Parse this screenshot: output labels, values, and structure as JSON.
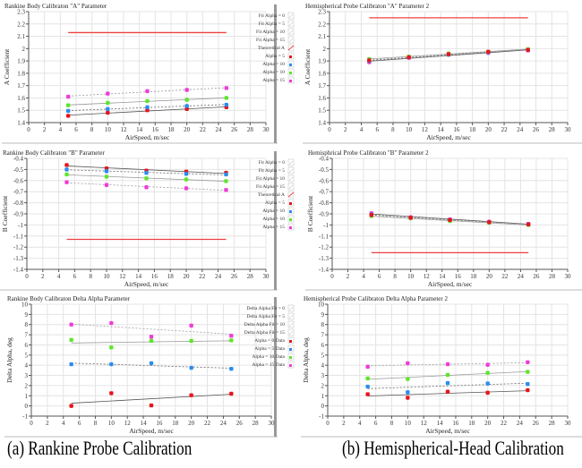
{
  "captions": {
    "a": "(a) Rankine Probe Calibration",
    "b": "(b) Hemispherical-Head Calibration"
  },
  "colors": {
    "alpha0": "#e8141c",
    "alpha5": "#2a8cf0",
    "alpha10": "#5ee62a",
    "alpha15": "#f03cd8",
    "theoretical": "#f04040",
    "fit": "#808080"
  },
  "chart_data": [
    {
      "type": "scatter",
      "title": "Rankine Body Calibraton \"A\" Parameter",
      "xlabel": "AirSpeed, m/sec",
      "ylabel": "A Coefficient",
      "xlim": [
        0,
        30
      ],
      "ylim": [
        1.4,
        2.3
      ],
      "grid": true,
      "legend_placement": "right",
      "xticks": [
        "0",
        "2",
        "4",
        "6",
        "8",
        "10",
        "12",
        "14",
        "16",
        "18",
        "20",
        "22",
        "24",
        "26",
        "28",
        "30"
      ],
      "yticks": [
        "1.4",
        "1.5",
        "1.6",
        "1.7",
        "1.8",
        "1.9",
        "2",
        "2.1",
        "2.2",
        "2.3"
      ],
      "legend": [
        "Fit Alpha = 0",
        "Fit Alpha = 5",
        "Fit Alpha = 10",
        "Fit Alpha = 15",
        "Theoretical A",
        "Alpha = 5",
        "Alpha = 10",
        "Alpha = 10",
        "Alpha = 15"
      ],
      "x": [
        5,
        10,
        15,
        20,
        25
      ],
      "series": [
        {
          "name": "Alpha = 5",
          "color": "#e8141c",
          "values": [
            1.455,
            1.48,
            1.5,
            1.51,
            1.525
          ]
        },
        {
          "name": "Alpha = 10",
          "color": "#2a8cf0",
          "values": [
            1.495,
            1.51,
            1.525,
            1.535,
            1.545
          ]
        },
        {
          "name": "Alpha = 10",
          "color": "#5ee62a",
          "values": [
            1.54,
            1.56,
            1.575,
            1.585,
            1.6
          ]
        },
        {
          "name": "Alpha = 15",
          "color": "#f03cd8",
          "values": [
            1.61,
            1.635,
            1.655,
            1.665,
            1.68
          ]
        }
      ],
      "theoretical": {
        "name": "Theoretical A",
        "value": 2.13,
        "x": [
          5,
          25
        ]
      }
    },
    {
      "type": "scatter",
      "title": "Hemispherical Probe Calibraton \"A\" Parameter 2",
      "xlabel": "AirSpeed, m/sec",
      "ylabel": "A Coefficient",
      "xlim": [
        0,
        30
      ],
      "ylim": [
        1.4,
        2.3
      ],
      "grid": true,
      "xticks": [
        "0",
        "2",
        "4",
        "6",
        "8",
        "10",
        "12",
        "14",
        "16",
        "18",
        "20",
        "22",
        "24",
        "26",
        "28",
        "30"
      ],
      "yticks": [
        "1.4",
        "1.5",
        "1.6",
        "1.7",
        "1.8",
        "1.9",
        "2",
        "2.1",
        "2.2",
        "2.3"
      ],
      "x": [
        5,
        10,
        15,
        20,
        25
      ],
      "series": [
        {
          "color": "#f03cd8",
          "values": [
            1.89,
            1.925,
            1.955,
            1.965,
            1.985
          ]
        },
        {
          "color": "#2a8cf0",
          "values": [
            1.9,
            1.93,
            1.95,
            1.97,
            1.99
          ]
        },
        {
          "color": "#5ee62a",
          "values": [
            1.915,
            1.935,
            1.96,
            1.975,
            1.995
          ]
        },
        {
          "color": "#e8141c",
          "values": [
            1.905,
            1.93,
            1.955,
            1.975,
            1.99
          ]
        }
      ],
      "theoretical": {
        "value": 2.25,
        "x": [
          5,
          25
        ]
      }
    },
    {
      "type": "scatter",
      "title": "Rankine Body Calibraton  \"B\" Parameter",
      "xlabel": "AirSpeed, m/sec",
      "ylabel": "B Coefficient",
      "xlim": [
        0,
        30
      ],
      "ylim": [
        -1.4,
        -0.4
      ],
      "grid": true,
      "legend_placement": "right",
      "xticks": [
        "0",
        "2",
        "4",
        "6",
        "8",
        "10",
        "12",
        "14",
        "16",
        "18",
        "20",
        "22",
        "24",
        "26",
        "28",
        "30"
      ],
      "yticks": [
        "-1.4",
        "-1.3",
        "-1.2",
        "-1.1",
        "-1",
        "-0.9",
        "-0.8",
        "-0.7",
        "-0.6",
        "-0.5",
        "-0.4"
      ],
      "legend": [
        "Fit Alpha = 0",
        "Fit Alpha = 5",
        "Fit Alpha = 10",
        "Fit Alpha = 15",
        "Theoretical A",
        "Alpha = 5",
        "Alpha = 10",
        "Alpha = 10",
        "Alpha = 15"
      ],
      "x": [
        5,
        10,
        15,
        20,
        25
      ],
      "series": [
        {
          "name": "Alpha = 5",
          "color": "#e8141c",
          "values": [
            -0.46,
            -0.49,
            -0.51,
            -0.52,
            -0.53
          ]
        },
        {
          "name": "Alpha = 10",
          "color": "#2a8cf0",
          "values": [
            -0.5,
            -0.515,
            -0.53,
            -0.54,
            -0.545
          ]
        },
        {
          "name": "Alpha = 10",
          "color": "#5ee62a",
          "values": [
            -0.545,
            -0.565,
            -0.58,
            -0.59,
            -0.605
          ]
        },
        {
          "name": "Alpha = 15",
          "color": "#f03cd8",
          "values": [
            -0.615,
            -0.64,
            -0.66,
            -0.67,
            -0.685
          ]
        }
      ],
      "theoretical": {
        "name": "Theoretical A",
        "value": -1.13,
        "x": [
          5,
          25
        ]
      }
    },
    {
      "type": "scatter",
      "title": "Hemisphrical Probe Calibraton  \"B\" Parameter 2",
      "xlabel": "AirSpeed, m/sec",
      "ylabel": "B Coefficient",
      "xlim": [
        0,
        30
      ],
      "ylim": [
        -1.4,
        -0.4
      ],
      "grid": true,
      "xticks": [
        "0",
        "2",
        "4",
        "6",
        "8",
        "10",
        "12",
        "14",
        "16",
        "18",
        "20",
        "22",
        "24",
        "26",
        "28",
        "30"
      ],
      "yticks": [
        "-1.4",
        "-1.3",
        "-1.2",
        "-1.1",
        "-1",
        "-0.9",
        "-0.8",
        "-0.7",
        "-0.6",
        "-0.5",
        "-0.4"
      ],
      "x": [
        5,
        10,
        15,
        20,
        25
      ],
      "series": [
        {
          "color": "#f03cd8",
          "values": [
            -0.895,
            -0.93,
            -0.95,
            -0.97,
            -0.99
          ]
        },
        {
          "color": "#2a8cf0",
          "values": [
            -0.905,
            -0.935,
            -0.955,
            -0.975,
            -0.995
          ]
        },
        {
          "color": "#5ee62a",
          "values": [
            -0.92,
            -0.94,
            -0.965,
            -0.98,
            -1.0
          ]
        },
        {
          "color": "#e8141c",
          "values": [
            -0.91,
            -0.935,
            -0.955,
            -0.975,
            -0.995
          ]
        }
      ],
      "theoretical": {
        "value": -1.25,
        "x": [
          5,
          25
        ]
      }
    },
    {
      "type": "scatter",
      "title": "Rankine Body Calibraton Delta Alpha Parameter",
      "xlabel": "AirSpeed, m/sec",
      "ylabel": "Delta Alpha, deg",
      "xlim": [
        0,
        30
      ],
      "ylim": [
        -1,
        10
      ],
      "grid": true,
      "legend_placement": "right",
      "xticks": [
        "0",
        "2",
        "4",
        "6",
        "8",
        "10",
        "12",
        "14",
        "16",
        "18",
        "20",
        "22",
        "24",
        "26",
        "28",
        "30"
      ],
      "yticks": [
        "-1",
        "0",
        "1",
        "2",
        "3",
        "4",
        "5",
        "6",
        "7",
        "8",
        "9",
        "10"
      ],
      "legend": [
        "Delta Alpha Fit = 0",
        "Delta Alpha Fit = 5",
        "Delta Alpha Fit = 10",
        "Delta Alpha Fit = 15",
        "Alpha = 0 Data",
        "Alpha = 5 Data",
        "Alpha = 10 Data",
        "Alpha = 15 Data"
      ],
      "x": [
        5,
        10,
        15,
        20,
        25
      ],
      "series": [
        {
          "name": "Alpha = 0 Data",
          "color": "#e8141c",
          "values": [
            0,
            1.25,
            0.05,
            1.05,
            1.2
          ]
        },
        {
          "name": "Alpha = 5 Data",
          "color": "#2a8cf0",
          "values": [
            4.1,
            4.1,
            4.2,
            3.75,
            3.65
          ]
        },
        {
          "name": "Alpha = 10 Data",
          "color": "#5ee62a",
          "values": [
            6.5,
            5.75,
            6.4,
            6.4,
            6.45
          ]
        },
        {
          "name": "Alpha = 15 Data",
          "color": "#f03cd8",
          "values": [
            8.0,
            8.15,
            6.8,
            7.9,
            6.9
          ]
        }
      ]
    },
    {
      "type": "scatter",
      "title": "Hemispherical Probe Calibraton Delta Alpha Parameter  2",
      "xlabel": "AirSpeed, m/sec",
      "ylabel": "Delta Alpha, deg",
      "xlim": [
        0,
        30
      ],
      "ylim": [
        -1,
        10
      ],
      "grid": true,
      "xticks": [
        "0",
        "2",
        "4",
        "6",
        "8",
        "10",
        "12",
        "14",
        "16",
        "18",
        "20",
        "22",
        "24",
        "26",
        "28",
        "30"
      ],
      "yticks": [
        "-1",
        "0",
        "1",
        "2",
        "3",
        "4",
        "5",
        "6",
        "7",
        "8",
        "9",
        "10"
      ],
      "x": [
        5,
        10,
        15,
        20,
        25
      ],
      "series": [
        {
          "color": "#e8141c",
          "values": [
            1.15,
            0.8,
            1.4,
            1.3,
            1.55
          ]
        },
        {
          "color": "#2a8cf0",
          "values": [
            1.9,
            1.35,
            2.25,
            2.2,
            2.15
          ]
        },
        {
          "color": "#5ee62a",
          "values": [
            2.7,
            2.65,
            3.05,
            3.25,
            3.35
          ]
        },
        {
          "color": "#f03cd8",
          "values": [
            3.85,
            4.2,
            4.1,
            4.05,
            4.3
          ]
        }
      ]
    }
  ]
}
